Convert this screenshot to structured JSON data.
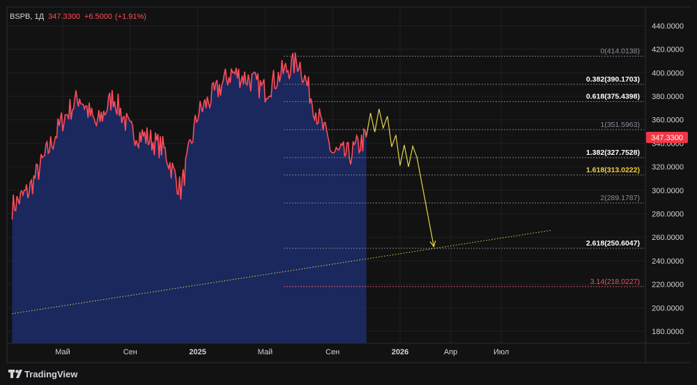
{
  "header": {
    "symbol": "BSPB",
    "interval": "1Д",
    "price": "347.3300",
    "change": "+6.5000",
    "change_pct": "(+1.91%)"
  },
  "branding": {
    "logo_icon": "tradingview-logo-icon",
    "name": "TradingView"
  },
  "current_price_badge": "347.3300",
  "colors": {
    "background": "#121212",
    "panel_border": "#2a2e39",
    "price_line": "#ff4d5a",
    "area_fill": "#1d2d6b",
    "projection": "#e8d84a",
    "fib_grey": "#8a8e98",
    "fib_white": "#ffffff",
    "fib_yellow": "#f5d033",
    "fib_red": "#e05a64",
    "badge": "#f23645"
  },
  "chart_data": {
    "type": "line",
    "title": "",
    "ylim": [
      160,
      450
    ],
    "y_ticks": [
      180,
      200,
      220,
      240,
      260,
      280,
      300,
      320,
      340,
      360,
      380,
      400,
      420,
      440
    ],
    "y_tick_labels": [
      "180.0000",
      "200.0000",
      "220.0000",
      "240.0000",
      "260.0000",
      "280.0000",
      "300.0000",
      "320.0000",
      "340.0000",
      "360.0000",
      "380.0000",
      "400.0000",
      "420.0000",
      "440.0000"
    ],
    "x_ticks": [
      {
        "label": "Май",
        "date": "2024-05",
        "year": false
      },
      {
        "label": "Сен",
        "date": "2024-09",
        "year": false
      },
      {
        "label": "2025",
        "date": "2025-01",
        "year": true
      },
      {
        "label": "Май",
        "date": "2025-05",
        "year": false
      },
      {
        "label": "Сен",
        "date": "2025-09",
        "year": false
      },
      {
        "label": "2026",
        "date": "2026-01",
        "year": true
      },
      {
        "label": "Апр",
        "date": "2026-04",
        "year": false
      },
      {
        "label": "Июл",
        "date": "2026-07",
        "year": false
      }
    ],
    "series": [
      {
        "x": [
          "2024-02",
          "2024-03",
          "2024-04",
          "2024-05",
          "2024-06",
          "2024-07",
          "2024-08",
          "2024-09",
          "2024-10",
          "2024-11",
          "2024-12",
          "2025-01",
          "2025-02",
          "2025-03",
          "2025-04",
          "2025-05",
          "2025-06",
          "2025-07",
          "2025-08",
          "2025-09",
          "2025-10",
          "2025-11"
        ],
        "values": [
          286,
          300,
          330,
          360,
          380,
          355,
          380,
          350,
          345,
          335,
          300,
          365,
          382,
          400,
          395,
          385,
          400,
          410,
          368,
          332,
          330,
          345
        ]
      }
    ],
    "projection": {
      "x": [
        "2025-11",
        "2025-12",
        "2026-01",
        "2026-02",
        "2026-03"
      ],
      "values": [
        355,
        362,
        330,
        328,
        252
      ]
    },
    "fib_levels": [
      {
        "label": "0(414.0138)",
        "value": 414.0138,
        "style": "grey"
      },
      {
        "label": "0.382(390.1703)",
        "value": 390.1703,
        "style": "white"
      },
      {
        "label": "0.618(375.4398)",
        "value": 375.4398,
        "style": "white"
      },
      {
        "label": "1(351.5963)",
        "value": 351.5963,
        "style": "grey"
      },
      {
        "label": "1.382(327.7528)",
        "value": 327.7528,
        "style": "white"
      },
      {
        "label": "1.618(313.0222)",
        "value": 313.0222,
        "style": "yellow"
      },
      {
        "label": "2(289.1787)",
        "value": 289.1787,
        "style": "grey"
      },
      {
        "label": "2.618(250.6047)",
        "value": 250.6047,
        "style": "white"
      },
      {
        "label": "3.14(218.0227)",
        "value": 218.0227,
        "style": "red"
      }
    ],
    "trendline": {
      "x": [
        "2024-02",
        "2026-10"
      ],
      "values": [
        195,
        266
      ]
    },
    "grid": true
  }
}
